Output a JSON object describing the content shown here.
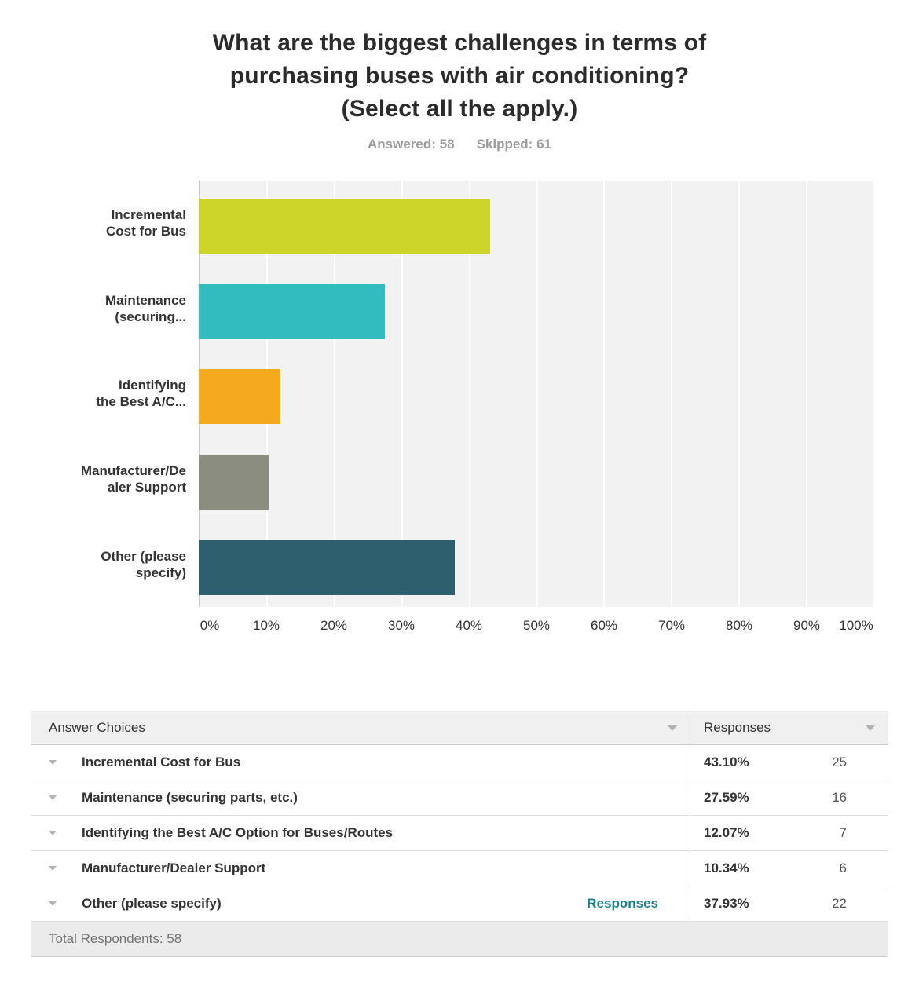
{
  "title": {
    "lines": [
      "What are the biggest challenges in terms of",
      "purchasing buses with air conditioning?",
      "(Select all the apply.)"
    ]
  },
  "subtitle": {
    "answered": "Answered: 58",
    "skipped": "Skipped: 61"
  },
  "chart_data": {
    "type": "bar",
    "orientation": "horizontal",
    "title": "What are the biggest challenges in terms of purchasing buses with air conditioning? (Select all the apply.)",
    "categories": [
      "Incremental Cost for Bus",
      "Maintenance (securing parts, etc.)",
      "Identifying the Best A/C Option for Buses/Routes",
      "Manufacturer/Dealer Support",
      "Other (please specify)"
    ],
    "category_labels_wrapped": [
      [
        "Incremental",
        "Cost for Bus"
      ],
      [
        "Maintenance",
        "(securing..."
      ],
      [
        "Identifying",
        "the Best A/C..."
      ],
      [
        "Manufacturer/De",
        "aler Support"
      ],
      [
        "Other (please",
        "specify)"
      ]
    ],
    "values": [
      43.1,
      27.59,
      12.07,
      10.34,
      37.93
    ],
    "counts": [
      25,
      16,
      7,
      6,
      22
    ],
    "bar_colors": [
      "#cdd52a",
      "#32bcc0",
      "#f5a91d",
      "#8a8d7f",
      "#2d5f6e"
    ],
    "xlim": [
      0,
      100
    ],
    "x_ticks": [
      "0%",
      "10%",
      "20%",
      "30%",
      "40%",
      "50%",
      "60%",
      "70%",
      "80%",
      "90%",
      "100%"
    ],
    "grid": true,
    "plot_bg": "#f2f2f2",
    "gridline_color": "#ffffff"
  },
  "table": {
    "headers": {
      "answer_choices": "Answer Choices",
      "responses": "Responses"
    },
    "rows": [
      {
        "answer": "Incremental Cost for Bus",
        "percent": "43.10%",
        "count": "25"
      },
      {
        "answer": "Maintenance (securing parts, etc.)",
        "percent": "27.59%",
        "count": "16"
      },
      {
        "answer": "Identifying the Best A/C Option for Buses/Routes",
        "percent": "12.07%",
        "count": "7"
      },
      {
        "answer": "Manufacturer/Dealer Support",
        "percent": "10.34%",
        "count": "6"
      },
      {
        "answer": "Other (please specify)",
        "link": "Responses",
        "percent": "37.93%",
        "count": "22"
      }
    ],
    "footer": "Total Respondents: 58"
  },
  "colors": {
    "link_teal": "#1b828c",
    "title_text": "#2b2b2b",
    "subtitle_text": "#9b9b9b"
  }
}
